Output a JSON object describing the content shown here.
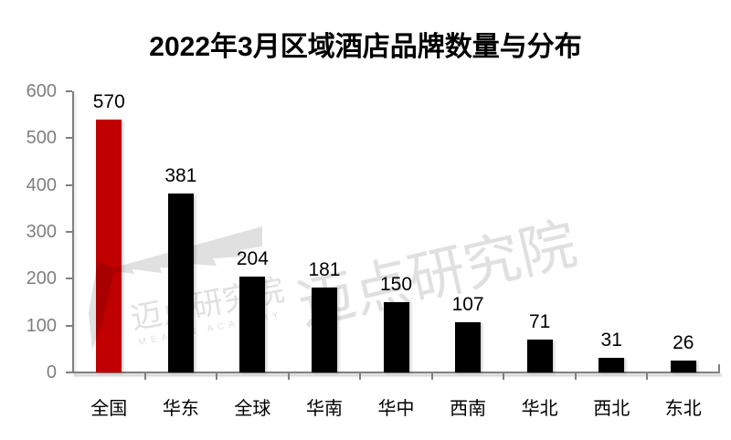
{
  "title": "2022年3月区域酒店品牌数量与分布",
  "watermark": {
    "large_text": "迈点研究院",
    "small_text": "迈点研究院",
    "small_subtext": "MEADIN ACADEMY"
  },
  "colors": {
    "highlight_bar": "#C00000",
    "default_bar": "#000000",
    "axis_line": "#808080",
    "axis_tick_label": "#7F7F7F",
    "value_label": "#000000",
    "category_label": "#000000",
    "watermark": "#E0E0E0",
    "background": "#FFFFFF"
  },
  "chart_data": {
    "type": "bar",
    "title": "2022年3月区域酒店品牌数量与分布",
    "categories": [
      "全国",
      "华东",
      "全球",
      "华南",
      "华中",
      "西南",
      "华北",
      "西北",
      "东北"
    ],
    "values": [
      570,
      381,
      204,
      181,
      150,
      107,
      71,
      31,
      26
    ],
    "highlight_index": 0,
    "xlabel": "",
    "ylabel": "",
    "ylim": [
      0,
      600
    ],
    "yticks": [
      0,
      100,
      200,
      300,
      400,
      500,
      600
    ],
    "grid": false,
    "legend": false,
    "data_labels": true
  }
}
